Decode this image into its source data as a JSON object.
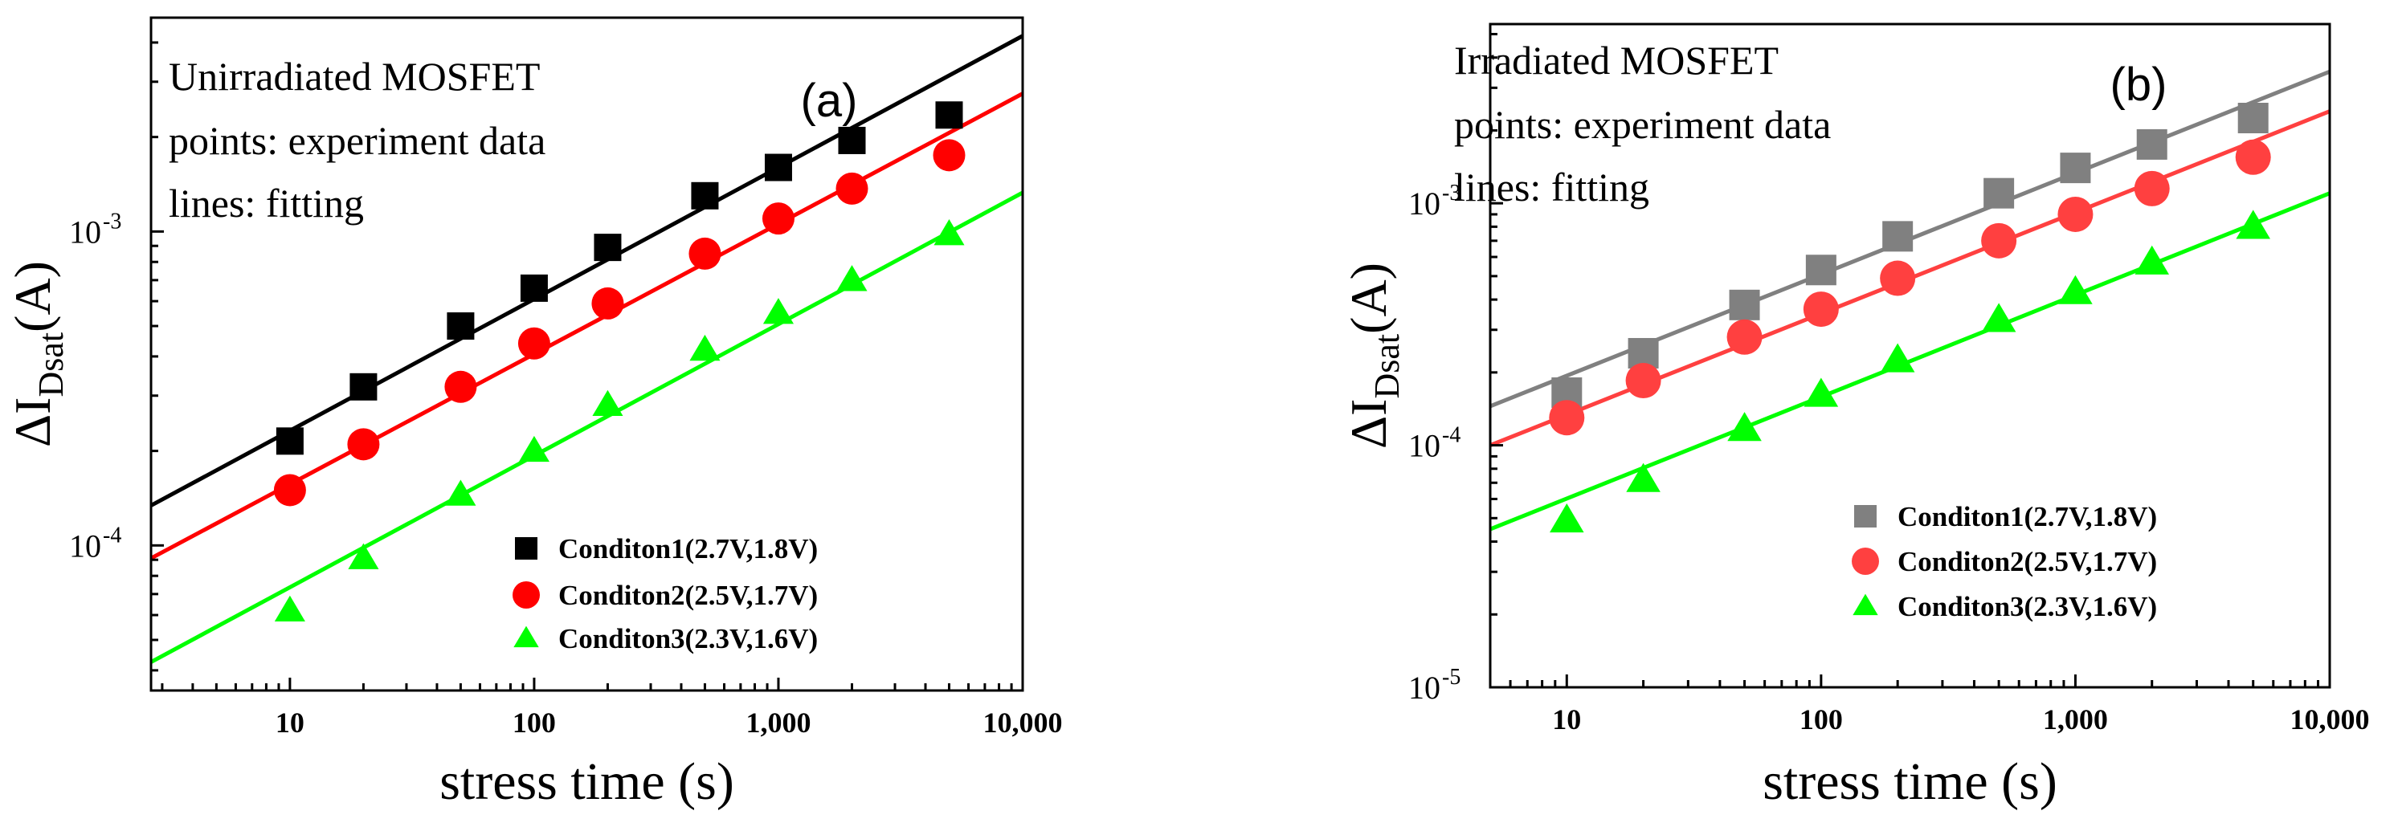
{
  "chart_data": [
    {
      "type": "scatter",
      "panel_label": "(a)",
      "annotation": [
        "Unirradiated MOSFET",
        "points: experiment data",
        "lines: fitting"
      ],
      "xlabel": "stress time (s)",
      "ylabel": {
        "main": "ΔI",
        "sub": "Dsat",
        "unit": "(A)"
      },
      "xscale": "log",
      "yscale": "log",
      "xlim": [
        2.7,
        10000
      ],
      "ylim": [
        3.45e-05,
        0.0048
      ],
      "x_ticks": [
        10,
        100,
        1000,
        10000
      ],
      "x_tick_labels": [
        "10",
        "100",
        "1,000",
        "10,000"
      ],
      "y_ticks": [
        {
          "value": 0.0001,
          "mantissa": "10",
          "exp": "-4"
        },
        {
          "value": 0.001,
          "mantissa": "10",
          "exp": "-3"
        }
      ],
      "legend_position": "lower-right",
      "series": [
        {
          "name": "Conditon1(2.7V,1.8V)",
          "marker": "square",
          "color": "#000000",
          "x": [
            10,
            20,
            50,
            100,
            200,
            500,
            1000,
            2000,
            5000
          ],
          "y": [
            0.000215,
            0.00032,
            0.0005,
            0.00066,
            0.00089,
            0.0013,
            0.0016,
            0.00195,
            0.00235
          ],
          "fit": {
            "x": [
              2.7,
              10000
            ],
            "y": [
              0.000134,
              0.0042
            ]
          }
        },
        {
          "name": "Conditon2(2.5V,1.7V)",
          "marker": "circle",
          "color": "#ff0000",
          "x": [
            10,
            20,
            50,
            100,
            200,
            500,
            1000,
            2000,
            5000
          ],
          "y": [
            0.00015,
            0.00021,
            0.00032,
            0.00044,
            0.00059,
            0.00085,
            0.0011,
            0.00137,
            0.00175
          ],
          "fit": {
            "x": [
              2.7,
              10000
            ],
            "y": [
              9.1e-05,
              0.00275
            ]
          }
        },
        {
          "name": "Conditon3(2.3V,1.6V)",
          "marker": "triangle",
          "color": "#00ff00",
          "x": [
            10,
            20,
            50,
            100,
            200,
            500,
            1000,
            2000,
            5000
          ],
          "y": [
            6.2e-05,
            9.1e-05,
            0.000145,
            0.0002,
            0.00028,
            0.00042,
            0.00055,
            0.0007,
            0.00098
          ],
          "fit": {
            "x": [
              2.7,
              10000
            ],
            "y": [
              4.25e-05,
              0.00133
            ]
          }
        }
      ]
    },
    {
      "type": "scatter",
      "panel_label": "(b)",
      "annotation": [
        "Irradiated MOSFET",
        "points: experiment data",
        "lines: fitting"
      ],
      "xlabel": "stress time (s)",
      "ylabel": {
        "main": "ΔI",
        "sub": "Dsat",
        "unit": "(A)"
      },
      "xscale": "log",
      "yscale": "log",
      "xlim": [
        5,
        10000
      ],
      "ylim": [
        1e-05,
        0.0055
      ],
      "x_ticks": [
        10,
        100,
        1000,
        10000
      ],
      "x_tick_labels": [
        "10",
        "100",
        "1,000",
        "10,000"
      ],
      "y_ticks": [
        {
          "value": 1e-05,
          "mantissa": "10",
          "exp": "-5"
        },
        {
          "value": 0.0001,
          "mantissa": "10",
          "exp": "-4"
        },
        {
          "value": 0.001,
          "mantissa": "10",
          "exp": "-3"
        }
      ],
      "legend_position": "lower-right",
      "series": [
        {
          "name": "Conditon1(2.7V,1.8V)",
          "marker": "square",
          "color": "#808080",
          "x": [
            10,
            20,
            50,
            100,
            200,
            500,
            1000,
            2000,
            5000
          ],
          "y": [
            0.000165,
            0.00024,
            0.00038,
            0.00053,
            0.00073,
            0.0011,
            0.0014,
            0.00175,
            0.00225
          ],
          "fit": {
            "x": [
              5,
              10000
            ],
            "y": [
              0.000145,
              0.0035
            ]
          }
        },
        {
          "name": "Conditon2(2.5V,1.7V)",
          "marker": "circle",
          "color": "#ff4040",
          "x": [
            10,
            20,
            50,
            100,
            200,
            500,
            1000,
            2000,
            5000
          ],
          "y": [
            0.00013,
            0.000185,
            0.00028,
            0.000365,
            0.00049,
            0.0007,
            0.0009,
            0.00115,
            0.00155
          ],
          "fit": {
            "x": [
              5,
              10000
            ],
            "y": [
              0.0001,
              0.0024
            ]
          }
        },
        {
          "name": "Conditon3(2.3V,1.6V)",
          "marker": "triangle",
          "color": "#00ff00",
          "x": [
            10,
            20,
            50,
            100,
            200,
            500,
            1000,
            2000,
            5000
          ],
          "y": [
            4.9e-05,
            7.2e-05,
            0.000117,
            0.000162,
            0.000225,
            0.00033,
            0.00043,
            0.00057,
            0.0008
          ],
          "fit": {
            "x": [
              5,
              10000
            ],
            "y": [
              4.5e-05,
              0.0011
            ]
          }
        }
      ]
    }
  ]
}
